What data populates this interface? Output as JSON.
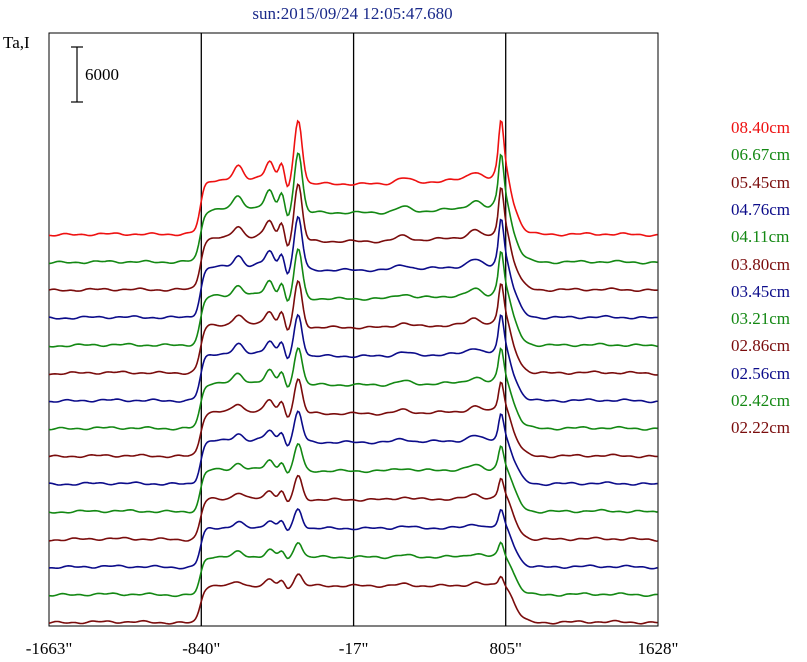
{
  "title": "sun:2015/09/24 12:05:47.680",
  "chart_data": {
    "type": "line",
    "title": "sun:2015/09/24 12:05:47.680",
    "ylabel": "Ta,I",
    "xlabel": "",
    "x_tick_labels": [
      "-1663\"",
      "-840\"",
      "-17\"",
      "805\"",
      "1628\""
    ],
    "x_ticks": [
      -1663,
      -840,
      -17,
      805,
      1628
    ],
    "xlim": [
      -1663,
      1628
    ],
    "vertical_lines": [
      -840,
      -17,
      805
    ],
    "scale_bar": {
      "label": "6000",
      "value": 6000
    },
    "series": [
      {
        "name": "08.40cm",
        "color": "#ee1111",
        "offset": 0
      },
      {
        "name": "06.67cm",
        "color": "#138813",
        "offset": 1
      },
      {
        "name": "05.45cm",
        "color": "#7a0c0c",
        "offset": 2
      },
      {
        "name": "04.76cm",
        "color": "#0c0c8a",
        "offset": 3
      },
      {
        "name": "04.11cm",
        "color": "#138813",
        "offset": 4
      },
      {
        "name": "03.80cm",
        "color": "#7a0c0c",
        "offset": 5
      },
      {
        "name": "03.45cm",
        "color": "#0c0c8a",
        "offset": 6
      },
      {
        "name": "03.21cm",
        "color": "#138813",
        "offset": 7
      },
      {
        "name": "02.86cm",
        "color": "#7a0c0c",
        "offset": 8
      },
      {
        "name": "02.56cm",
        "color": "#0c0c8a",
        "offset": 9
      },
      {
        "name": "02.42cm",
        "color": "#138813",
        "offset": 10
      },
      {
        "name": "02.22cm",
        "color": "#7a0c0c",
        "offset": 11
      },
      {
        "name": "",
        "color": "#0c0c8a",
        "offset": 12
      },
      {
        "name": "",
        "color": "#138813",
        "offset": 13
      },
      {
        "name": "",
        "color": "#7a0c0c",
        "offset": 14
      }
    ]
  }
}
